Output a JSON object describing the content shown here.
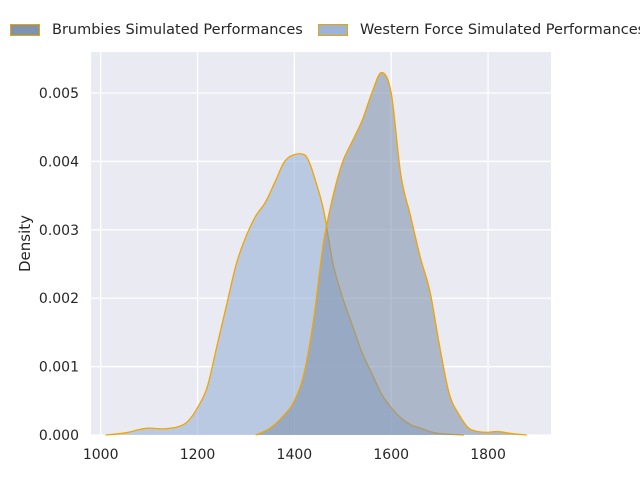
{
  "chart_data": {
    "type": "area",
    "title": "",
    "xlabel": "",
    "ylabel": "Density",
    "xlim": [
      980,
      1930
    ],
    "ylim": [
      0,
      0.0056
    ],
    "xticks": [
      1000,
      1200,
      1400,
      1600,
      1800
    ],
    "yticks": [
      "0.000",
      "0.001",
      "0.002",
      "0.003",
      "0.004",
      "0.005"
    ],
    "ytick_values": [
      0,
      0.001,
      0.002,
      0.003,
      0.004,
      0.005
    ],
    "grid": true,
    "legend_position": "top",
    "colors": {
      "plot_bg": "#eaeaf2",
      "grid": "#ffffff",
      "edge": "#f0a500",
      "brumbies_fill": "#8092ad",
      "western_fill": "#9db4d8"
    },
    "series": [
      {
        "name": "Brumbies Simulated Performances",
        "fill": "#8092ad",
        "x": [
          1320,
          1350,
          1380,
          1400,
          1420,
          1440,
          1460,
          1480,
          1500,
          1520,
          1540,
          1560,
          1580,
          1600,
          1620,
          1640,
          1660,
          1680,
          1700,
          1720,
          1740,
          1760,
          1780,
          1800,
          1820,
          1850,
          1880
        ],
        "y": [
          0.0,
          0.0001,
          0.0003,
          0.0005,
          0.0009,
          0.0017,
          0.0028,
          0.0035,
          0.004,
          0.0043,
          0.0046,
          0.005,
          0.0053,
          0.005,
          0.0038,
          0.0032,
          0.0026,
          0.0021,
          0.0013,
          0.0006,
          0.0003,
          0.0001,
          5e-05,
          4e-05,
          5e-05,
          2e-05,
          0.0
        ]
      },
      {
        "name": "Western Force Simulated Performances",
        "fill": "#9db4d8",
        "x": [
          1010,
          1050,
          1080,
          1100,
          1130,
          1160,
          1180,
          1200,
          1220,
          1240,
          1260,
          1280,
          1300,
          1320,
          1340,
          1360,
          1380,
          1400,
          1420,
          1430,
          1440,
          1460,
          1480,
          1500,
          1520,
          1540,
          1560,
          1580,
          1600,
          1620,
          1640,
          1660,
          1680,
          1700,
          1720,
          1750
        ],
        "y": [
          0.0,
          3e-05,
          8e-05,
          0.0001,
          9e-05,
          0.00012,
          0.0002,
          0.0004,
          0.0007,
          0.0013,
          0.0019,
          0.0025,
          0.0029,
          0.0032,
          0.0034,
          0.0037,
          0.004,
          0.0041,
          0.0041,
          0.004,
          0.0038,
          0.0033,
          0.0025,
          0.002,
          0.0016,
          0.0012,
          0.0009,
          0.0006,
          0.0004,
          0.00025,
          0.00015,
          0.0001,
          5e-05,
          2e-05,
          1e-05,
          0.0
        ]
      }
    ]
  }
}
